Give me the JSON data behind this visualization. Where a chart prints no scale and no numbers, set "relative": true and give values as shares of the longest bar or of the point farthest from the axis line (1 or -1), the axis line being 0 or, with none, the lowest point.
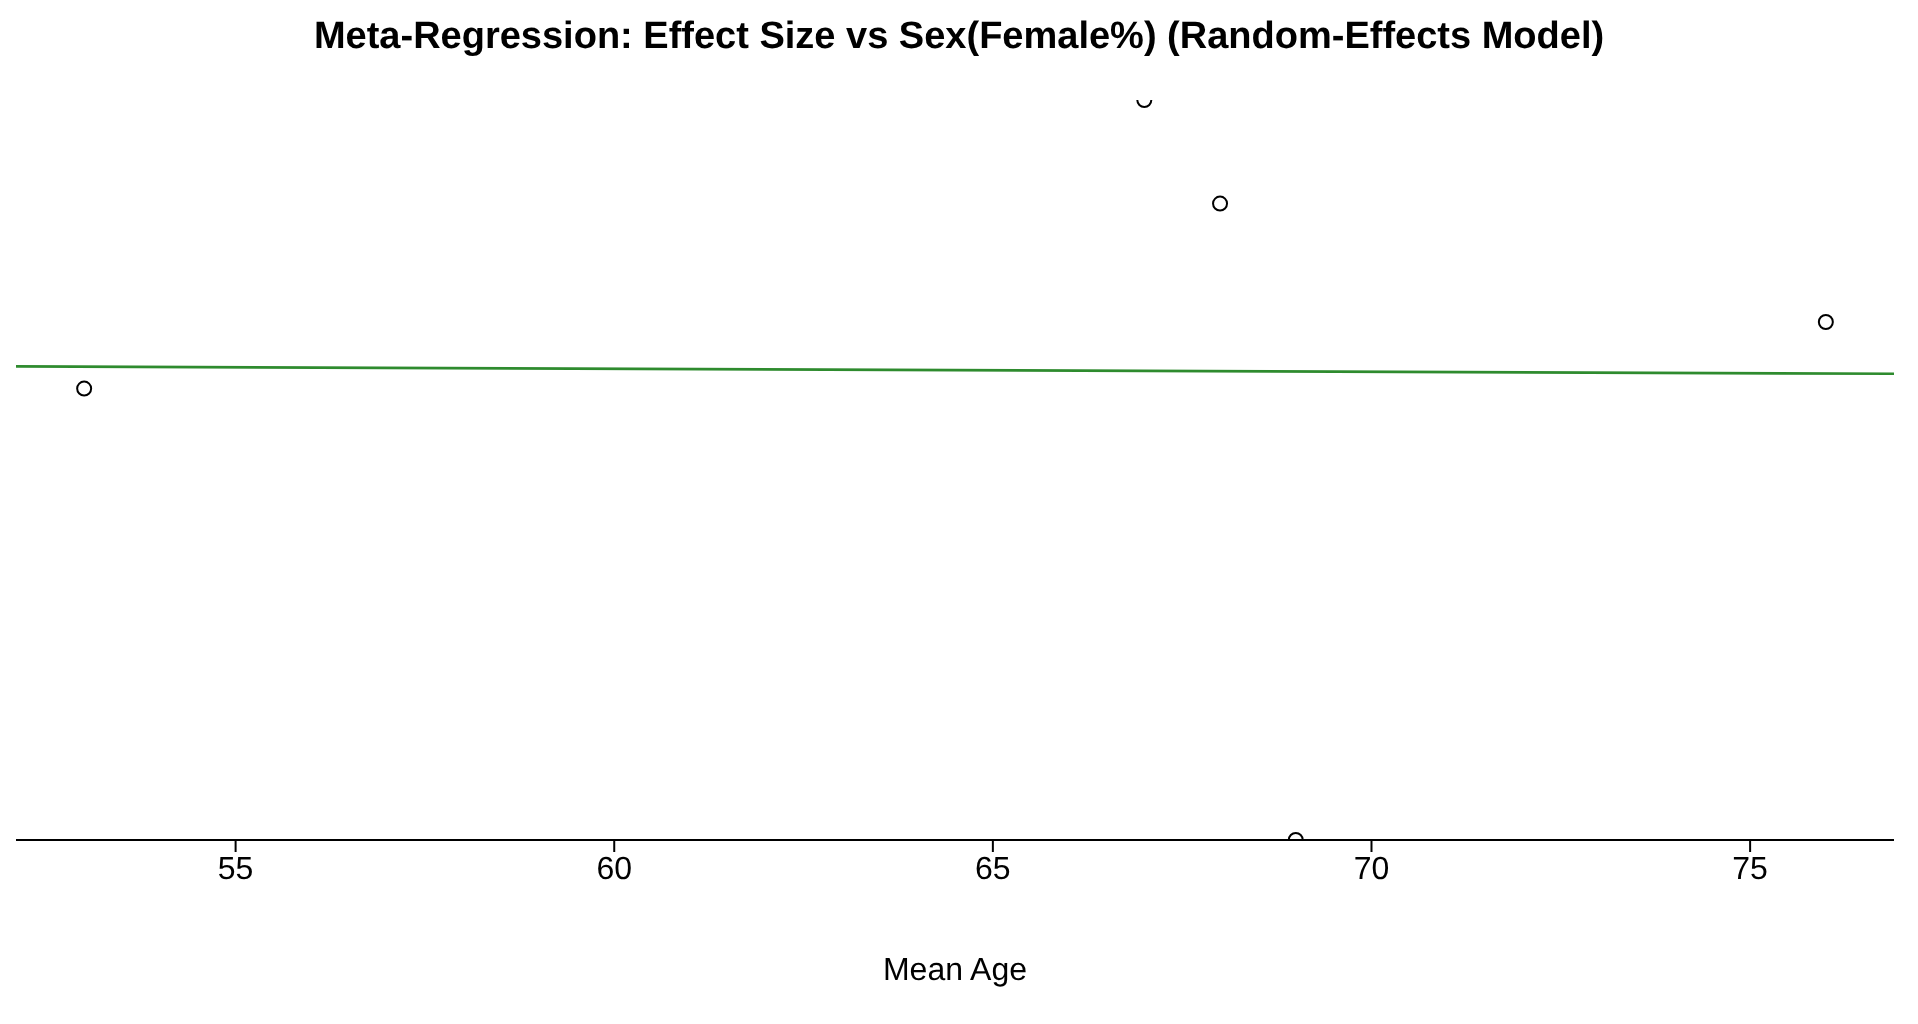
{
  "chart_data": {
    "type": "scatter",
    "title": "Meta-Regression: Effect Size vs Sex(Female%) (Random-Effects Model)",
    "xlabel": "Mean Age",
    "relative": true,
    "xlim": [
      52.1,
      76.9
    ],
    "xticks": [
      55,
      60,
      65,
      70,
      75
    ],
    "grid": false,
    "legend": false,
    "series": [
      {
        "marker": "circle",
        "color": "#000000",
        "x": [
          53,
          67,
          68,
          69,
          76
        ],
        "values": [
          0.61,
          1,
          0.86,
          0,
          0.7
        ]
      },
      {
        "type": "line",
        "marker": "none",
        "color": "#2e8b2e",
        "x": [
          52.1,
          76.9
        ],
        "values": [
          0.64,
          0.63
        ]
      }
    ]
  }
}
